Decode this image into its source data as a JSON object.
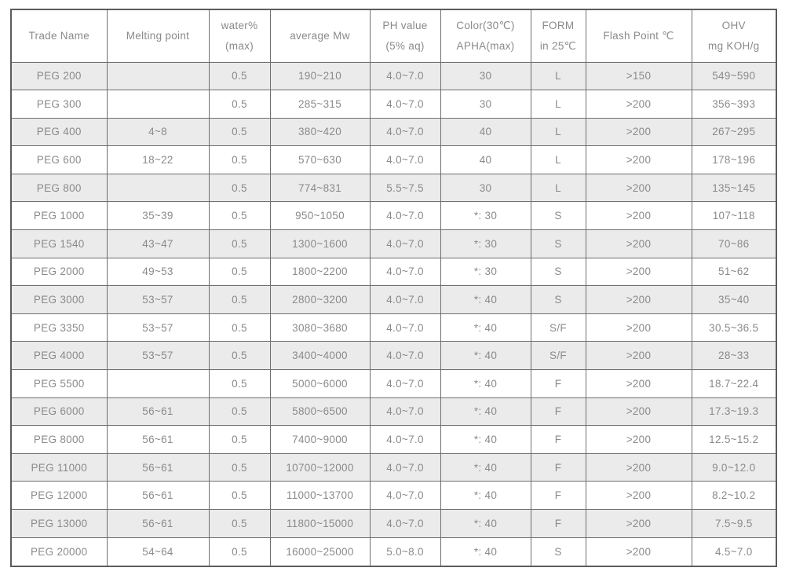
{
  "colors": {
    "stripe": "#ebebeb",
    "plain": "#ffffff",
    "border": "#6f6f6f",
    "outer": "#5c5c5c",
    "text": "#8a8a8a"
  },
  "table": {
    "columns": [
      {
        "id": "trade-name",
        "lines": [
          "Trade Name"
        ]
      },
      {
        "id": "melting-point",
        "lines": [
          "Melting point"
        ]
      },
      {
        "id": "water-max",
        "lines": [
          "water%",
          "(max)"
        ]
      },
      {
        "id": "average-mw",
        "lines": [
          "average Mw"
        ]
      },
      {
        "id": "ph-value",
        "lines": [
          "PH value",
          "(5% aq)"
        ]
      },
      {
        "id": "color-apha",
        "lines": [
          "Color(30℃)",
          "APHA(max)"
        ]
      },
      {
        "id": "form",
        "lines": [
          "FORM",
          "in 25℃"
        ]
      },
      {
        "id": "flash-point",
        "lines": [
          "Flash Point ℃"
        ]
      },
      {
        "id": "ohv",
        "lines": [
          "OHV",
          "mg KOH/g"
        ]
      }
    ],
    "rows": [
      [
        "PEG 200",
        "",
        "0.5",
        "190~210",
        "4.0~7.0",
        "30",
        "L",
        ">150",
        "549~590"
      ],
      [
        "PEG 300",
        "",
        "0.5",
        "285~315",
        "4.0~7.0",
        "30",
        "L",
        ">200",
        "356~393"
      ],
      [
        "PEG 400",
        "4~8",
        "0.5",
        "380~420",
        "4.0~7.0",
        "40",
        "L",
        ">200",
        "267~295"
      ],
      [
        "PEG 600",
        "18~22",
        "0.5",
        "570~630",
        "4.0~7.0",
        "40",
        "L",
        ">200",
        "178~196"
      ],
      [
        "PEG 800",
        "",
        "0.5",
        "774~831",
        "5.5~7.5",
        "30",
        "L",
        ">200",
        "135~145"
      ],
      [
        "PEG 1000",
        "35~39",
        "0.5",
        "950~1050",
        "4.0~7.0",
        "*: 30",
        "S",
        ">200",
        "107~118"
      ],
      [
        "PEG 1540",
        "43~47",
        "0.5",
        "1300~1600",
        "4.0~7.0",
        "*: 30",
        "S",
        ">200",
        "70~86"
      ],
      [
        "PEG 2000",
        "49~53",
        "0.5",
        "1800~2200",
        "4.0~7.0",
        "*: 30",
        "S",
        ">200",
        "51~62"
      ],
      [
        "PEG 3000",
        "53~57",
        "0.5",
        "2800~3200",
        "4.0~7.0",
        "*: 40",
        "S",
        ">200",
        "35~40"
      ],
      [
        "PEG 3350",
        "53~57",
        "0.5",
        "3080~3680",
        "4.0~7.0",
        "*: 40",
        "S/F",
        ">200",
        "30.5~36.5"
      ],
      [
        "PEG 4000",
        "53~57",
        "0.5",
        "3400~4000",
        "4.0~7.0",
        "*: 40",
        "S/F",
        ">200",
        "28~33"
      ],
      [
        "PEG 5500",
        "",
        "0.5",
        "5000~6000",
        "4.0~7.0",
        "*: 40",
        "F",
        ">200",
        "18.7~22.4"
      ],
      [
        "PEG 6000",
        "56~61",
        "0.5",
        "5800~6500",
        "4.0~7.0",
        "*: 40",
        "F",
        ">200",
        "17.3~19.3"
      ],
      [
        "PEG 8000",
        "56~61",
        "0.5",
        "7400~9000",
        "4.0~7.0",
        "*: 40",
        "F",
        ">200",
        "12.5~15.2"
      ],
      [
        "PEG 11000",
        "56~61",
        "0.5",
        "10700~12000",
        "4.0~7.0",
        "*: 40",
        "F",
        ">200",
        "9.0~12.0"
      ],
      [
        "PEG 12000",
        "56~61",
        "0.5",
        "11000~13700",
        "4.0~7.0",
        "*: 40",
        "F",
        ">200",
        "8.2~10.2"
      ],
      [
        "PEG 13000",
        "56~61",
        "0.5",
        "11800~15000",
        "4.0~7.0",
        "*: 40",
        "F",
        ">200",
        "7.5~9.5"
      ],
      [
        "PEG 20000",
        "54~64",
        "0.5",
        "16000~25000",
        "5.0~8.0",
        "*: 40",
        "S",
        ">200",
        "4.5~7.0"
      ]
    ]
  }
}
